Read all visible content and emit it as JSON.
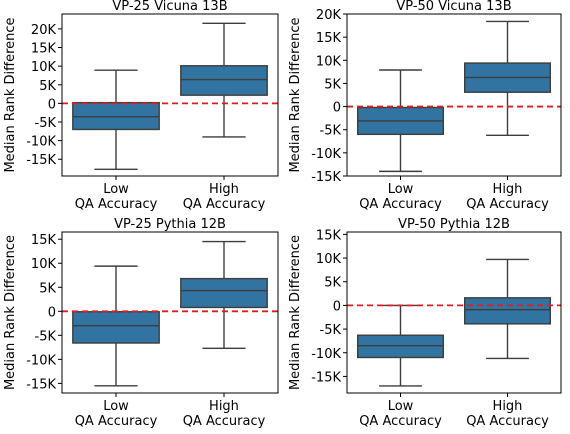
{
  "chart_data": [
    {
      "type": "box",
      "title": "VP-25 Vicuna 13B",
      "ylabel": "Median Rank Difference",
      "categories": [
        "Low\nQA Accuracy",
        "High\nQA Accuracy"
      ],
      "ylim": [
        -19500,
        24000
      ],
      "yticks": [
        -15000,
        -10000,
        -5000,
        0,
        5000,
        10000,
        15000,
        20000
      ],
      "ytick_labels": [
        "-15K",
        "-10K",
        "-5K",
        "0",
        "5K",
        "10K",
        "15K",
        "20K"
      ],
      "reference_line": 0,
      "boxes": [
        {
          "whisker_low": -17700,
          "q1": -7000,
          "median": -3600,
          "q3": 200,
          "whisker_high": 8900
        },
        {
          "whisker_low": -9000,
          "q1": 2200,
          "median": 6400,
          "q3": 10100,
          "whisker_high": 21500
        }
      ]
    },
    {
      "type": "box",
      "title": "VP-50 Vicuna 13B",
      "ylabel": "Median Rank Difference",
      "categories": [
        "Low\nQA Accuracy",
        "High\nQA Accuracy"
      ],
      "ylim": [
        -15000,
        20000
      ],
      "yticks": [
        -15000,
        -10000,
        -5000,
        0,
        5000,
        10000,
        15000,
        20000
      ],
      "ytick_labels": [
        "-15K",
        "-10K",
        "-5K",
        "0",
        "5K",
        "10K",
        "15K",
        "20K"
      ],
      "reference_line": 0,
      "boxes": [
        {
          "whisker_low": -14000,
          "q1": -6000,
          "median": -3100,
          "q3": -200,
          "whisker_high": 7900
        },
        {
          "whisker_low": -6200,
          "q1": 3100,
          "median": 6300,
          "q3": 9400,
          "whisker_high": 18400
        }
      ]
    },
    {
      "type": "box",
      "title": "VP-25 Pythia 12B",
      "ylabel": "Median Rank Difference",
      "categories": [
        "Low\nQA Accuracy",
        "High\nQA Accuracy"
      ],
      "ylim": [
        -17000,
        16500
      ],
      "yticks": [
        -15000,
        -10000,
        -5000,
        0,
        5000,
        10000,
        15000
      ],
      "ytick_labels": [
        "-15K",
        "-10K",
        "-5K",
        "0",
        "5K",
        "10K",
        "15K"
      ],
      "reference_line": 0,
      "boxes": [
        {
          "whisker_low": -15500,
          "q1": -6600,
          "median": -3000,
          "q3": -100,
          "whisker_high": 9400
        },
        {
          "whisker_low": -7700,
          "q1": 800,
          "median": 4300,
          "q3": 6800,
          "whisker_high": 14500
        }
      ]
    },
    {
      "type": "box",
      "title": "VP-50 Pythia 12B",
      "ylabel": "Median Rank Difference",
      "categories": [
        "Low\nQA Accuracy",
        "High\nQA Accuracy"
      ],
      "ylim": [
        -18500,
        15500
      ],
      "yticks": [
        -15000,
        -10000,
        -5000,
        0,
        5000,
        10000,
        15000
      ],
      "ytick_labels": [
        "-15K",
        "-10K",
        "-5K",
        "0",
        "5K",
        "10K",
        "15K"
      ],
      "reference_line": 0,
      "boxes": [
        {
          "whisker_low": -17000,
          "q1": -11000,
          "median": -8500,
          "q3": -6300,
          "whisker_high": 0
        },
        {
          "whisker_low": -11200,
          "q1": -3900,
          "median": -900,
          "q3": 1600,
          "whisker_high": 9700
        }
      ]
    }
  ],
  "colors": {
    "box_fill": "#3274a1",
    "box_edge": "#3d3d3d",
    "reference_line": "#e41a1c"
  }
}
